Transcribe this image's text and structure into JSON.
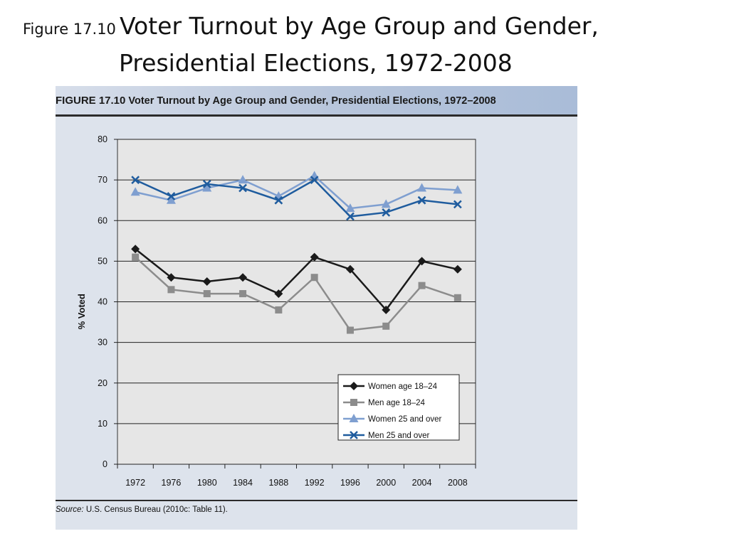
{
  "slide": {
    "title_prefix": "Figure 17.10",
    "title_main": "Voter Turnout by Age Group and Gender,",
    "title_line2": "Presidential Elections, 1972-2008"
  },
  "figure": {
    "header_label": "FIGURE 17.10",
    "header_title": "Voter Turnout by Age Group and Gender, Presidential Elections, 1972–2008",
    "source_label": "Source:",
    "source_text": "U.S. Census Bureau (2010c: Table 11)."
  },
  "chart_data": {
    "type": "line",
    "title": "Voter Turnout by Age Group and Gender, Presidential Elections, 1972–2008",
    "xlabel": "",
    "ylabel": "% Voted",
    "categories": [
      "1972",
      "1976",
      "1980",
      "1984",
      "1988",
      "1992",
      "1996",
      "2000",
      "2004",
      "2008"
    ],
    "ylim": [
      0,
      80
    ],
    "yticks": [
      0,
      10,
      20,
      30,
      40,
      50,
      60,
      70,
      80
    ],
    "grid": "horizontal",
    "legend_position": "bottom-right",
    "series": [
      {
        "name": "Women age 18–24",
        "color": "#1a1a1a",
        "marker": "diamond",
        "values": [
          53,
          46,
          45,
          46,
          42,
          51,
          48,
          38,
          50,
          48
        ]
      },
      {
        "name": "Men age 18–24",
        "color": "#8c8c8c",
        "marker": "square",
        "values": [
          51,
          43,
          42,
          42,
          38,
          46,
          33,
          34,
          44,
          41
        ]
      },
      {
        "name": "Women 25 and over",
        "color": "#7f9fd0",
        "marker": "triangle",
        "values": [
          67,
          65,
          68,
          70,
          66,
          71,
          63,
          64,
          68,
          67.5
        ]
      },
      {
        "name": "Men 25 and over",
        "color": "#1f5c9e",
        "marker": "x",
        "values": [
          70,
          66,
          69,
          68,
          65,
          70,
          61,
          62,
          65,
          64
        ]
      }
    ]
  }
}
